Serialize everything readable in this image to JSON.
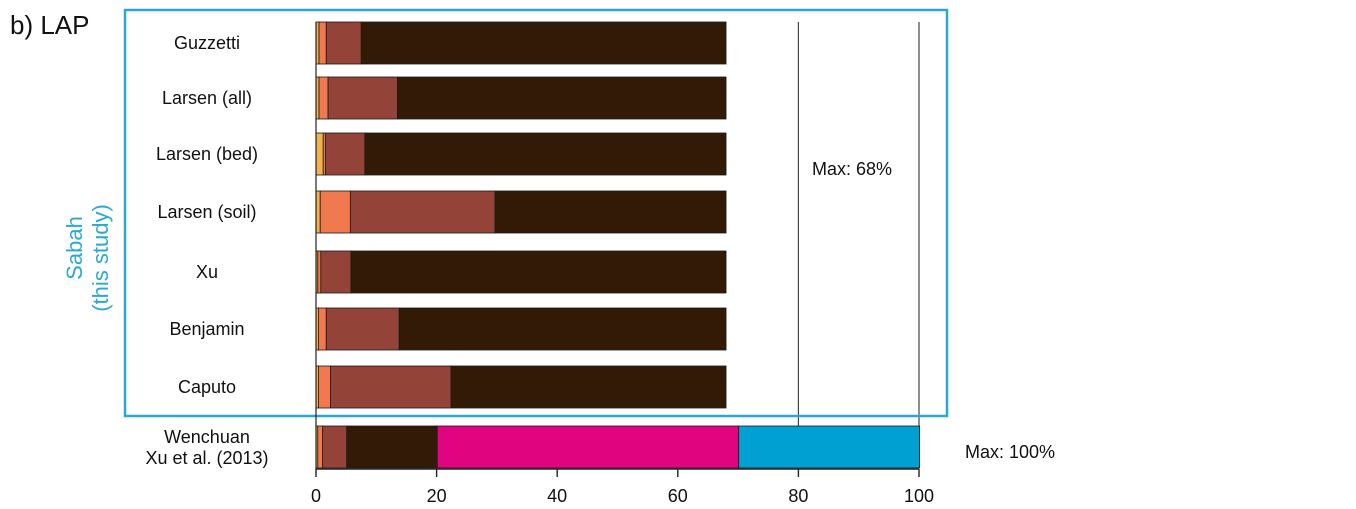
{
  "panel_label": "b) LAP",
  "group_label": {
    "line1": "Sabah",
    "line2": "(this study)",
    "color": "#2aa8d2"
  },
  "max_labels": {
    "sabah": "Max: 68%",
    "wenchuan": "Max: 100%"
  },
  "colors": {
    "c1": "#f3b24b",
    "c2": "#f07a4e",
    "c3": "#934338",
    "c4": "#331a06",
    "c5": "#e0047f",
    "c6": "#00a0d3",
    "frame": "#2aa8d2"
  },
  "chart_data": {
    "type": "bar",
    "orientation": "horizontal",
    "stacked": true,
    "title": "",
    "xlabel": "",
    "ylabel": "",
    "xlim": [
      0,
      100
    ],
    "xticks": [
      0,
      20,
      40,
      60,
      80,
      100
    ],
    "vertical_gridlines": [
      80,
      100
    ],
    "categories": [
      "Guzzetti",
      "Larsen (all)",
      "Larsen (bed)",
      "Larsen (soil)",
      "Xu",
      "Benjamin",
      "Caputo",
      "Wenchuan\nXu et al. (2013)"
    ],
    "segment_colors": [
      "c1",
      "c2",
      "c3",
      "c4",
      "c5",
      "c6"
    ],
    "segments": [
      [
        0.5,
        1.2,
        5.8,
        60.5,
        0,
        0
      ],
      [
        0.5,
        1.5,
        11.5,
        54.5,
        0,
        0
      ],
      [
        1.2,
        0.4,
        6.5,
        59.9,
        0,
        0
      ],
      [
        0.7,
        5.0,
        24.0,
        38.3,
        0,
        0
      ],
      [
        0.3,
        0.5,
        5.0,
        62.2,
        0,
        0
      ],
      [
        0.4,
        1.3,
        12.1,
        54.2,
        0,
        0
      ],
      [
        0.4,
        2.0,
        20.0,
        45.6,
        0,
        0
      ],
      [
        0.3,
        0.8,
        4.0,
        15.0,
        50.0,
        30.0
      ]
    ]
  }
}
